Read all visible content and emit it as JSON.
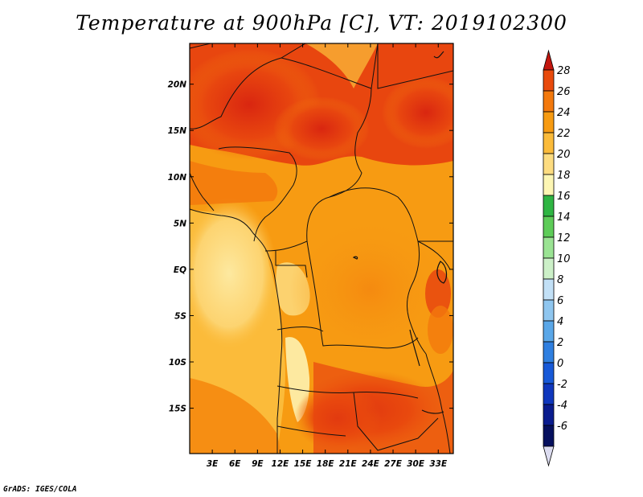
{
  "title": "Temperature at 900hPa [C], VT: 2019102300",
  "credit": "GrADS: IGES/COLA",
  "map": {
    "lat_ticks": [
      "20N",
      "15N",
      "10N",
      "5N",
      "EQ",
      "5S",
      "10S",
      "15S"
    ],
    "lat_values": [
      20,
      15,
      10,
      5,
      0,
      -5,
      -10,
      -15
    ],
    "lat_range": [
      -19.9,
      24.4
    ],
    "lon_ticks": [
      "3E",
      "6E",
      "9E",
      "12E",
      "15E",
      "18E",
      "21E",
      "24E",
      "27E",
      "30E",
      "33E"
    ],
    "lon_values": [
      3,
      6,
      9,
      12,
      15,
      18,
      21,
      24,
      27,
      30,
      33
    ],
    "lon_range": [
      0,
      35
    ],
    "variable": "Temperature at 900hPa",
    "units": "C"
  },
  "colorbar": {
    "levels": [
      "28",
      "26",
      "24",
      "22",
      "20",
      "18",
      "16",
      "14",
      "12",
      "10",
      "8",
      "6",
      "4",
      "2",
      "0",
      "-2",
      "-4",
      "-6"
    ],
    "colors": [
      "#c3160e",
      "#e84a0c",
      "#f3790d",
      "#f79b12",
      "#fbbb3a",
      "#fddc80",
      "#fdf6b3",
      "#2fb543",
      "#5dcc58",
      "#9ae393",
      "#ccf0c8",
      "#c2e0f6",
      "#8fc6ef",
      "#5aa7e8",
      "#2f7fe0",
      "#1759d8",
      "#0f37bd",
      "#0a1c8e",
      "#06105e",
      "#dcdcf0"
    ]
  }
}
